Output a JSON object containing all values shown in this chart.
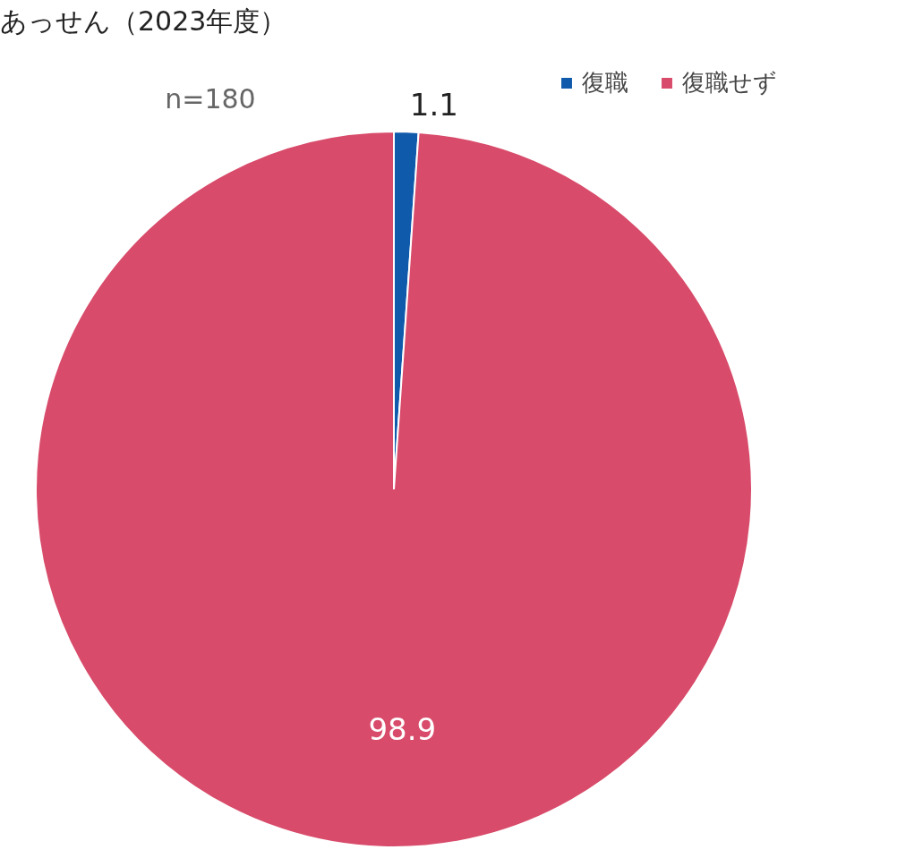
{
  "chart_data": {
    "type": "pie",
    "title": "あっせん（2023年度）",
    "categories": [
      "復職",
      "復職せず"
    ],
    "values": [
      1.1,
      98.9
    ],
    "colors": [
      "#0f5aab",
      "#d84b6a"
    ],
    "data_labels": true,
    "legend": "top right",
    "annotations": [
      "n=180"
    ]
  }
}
